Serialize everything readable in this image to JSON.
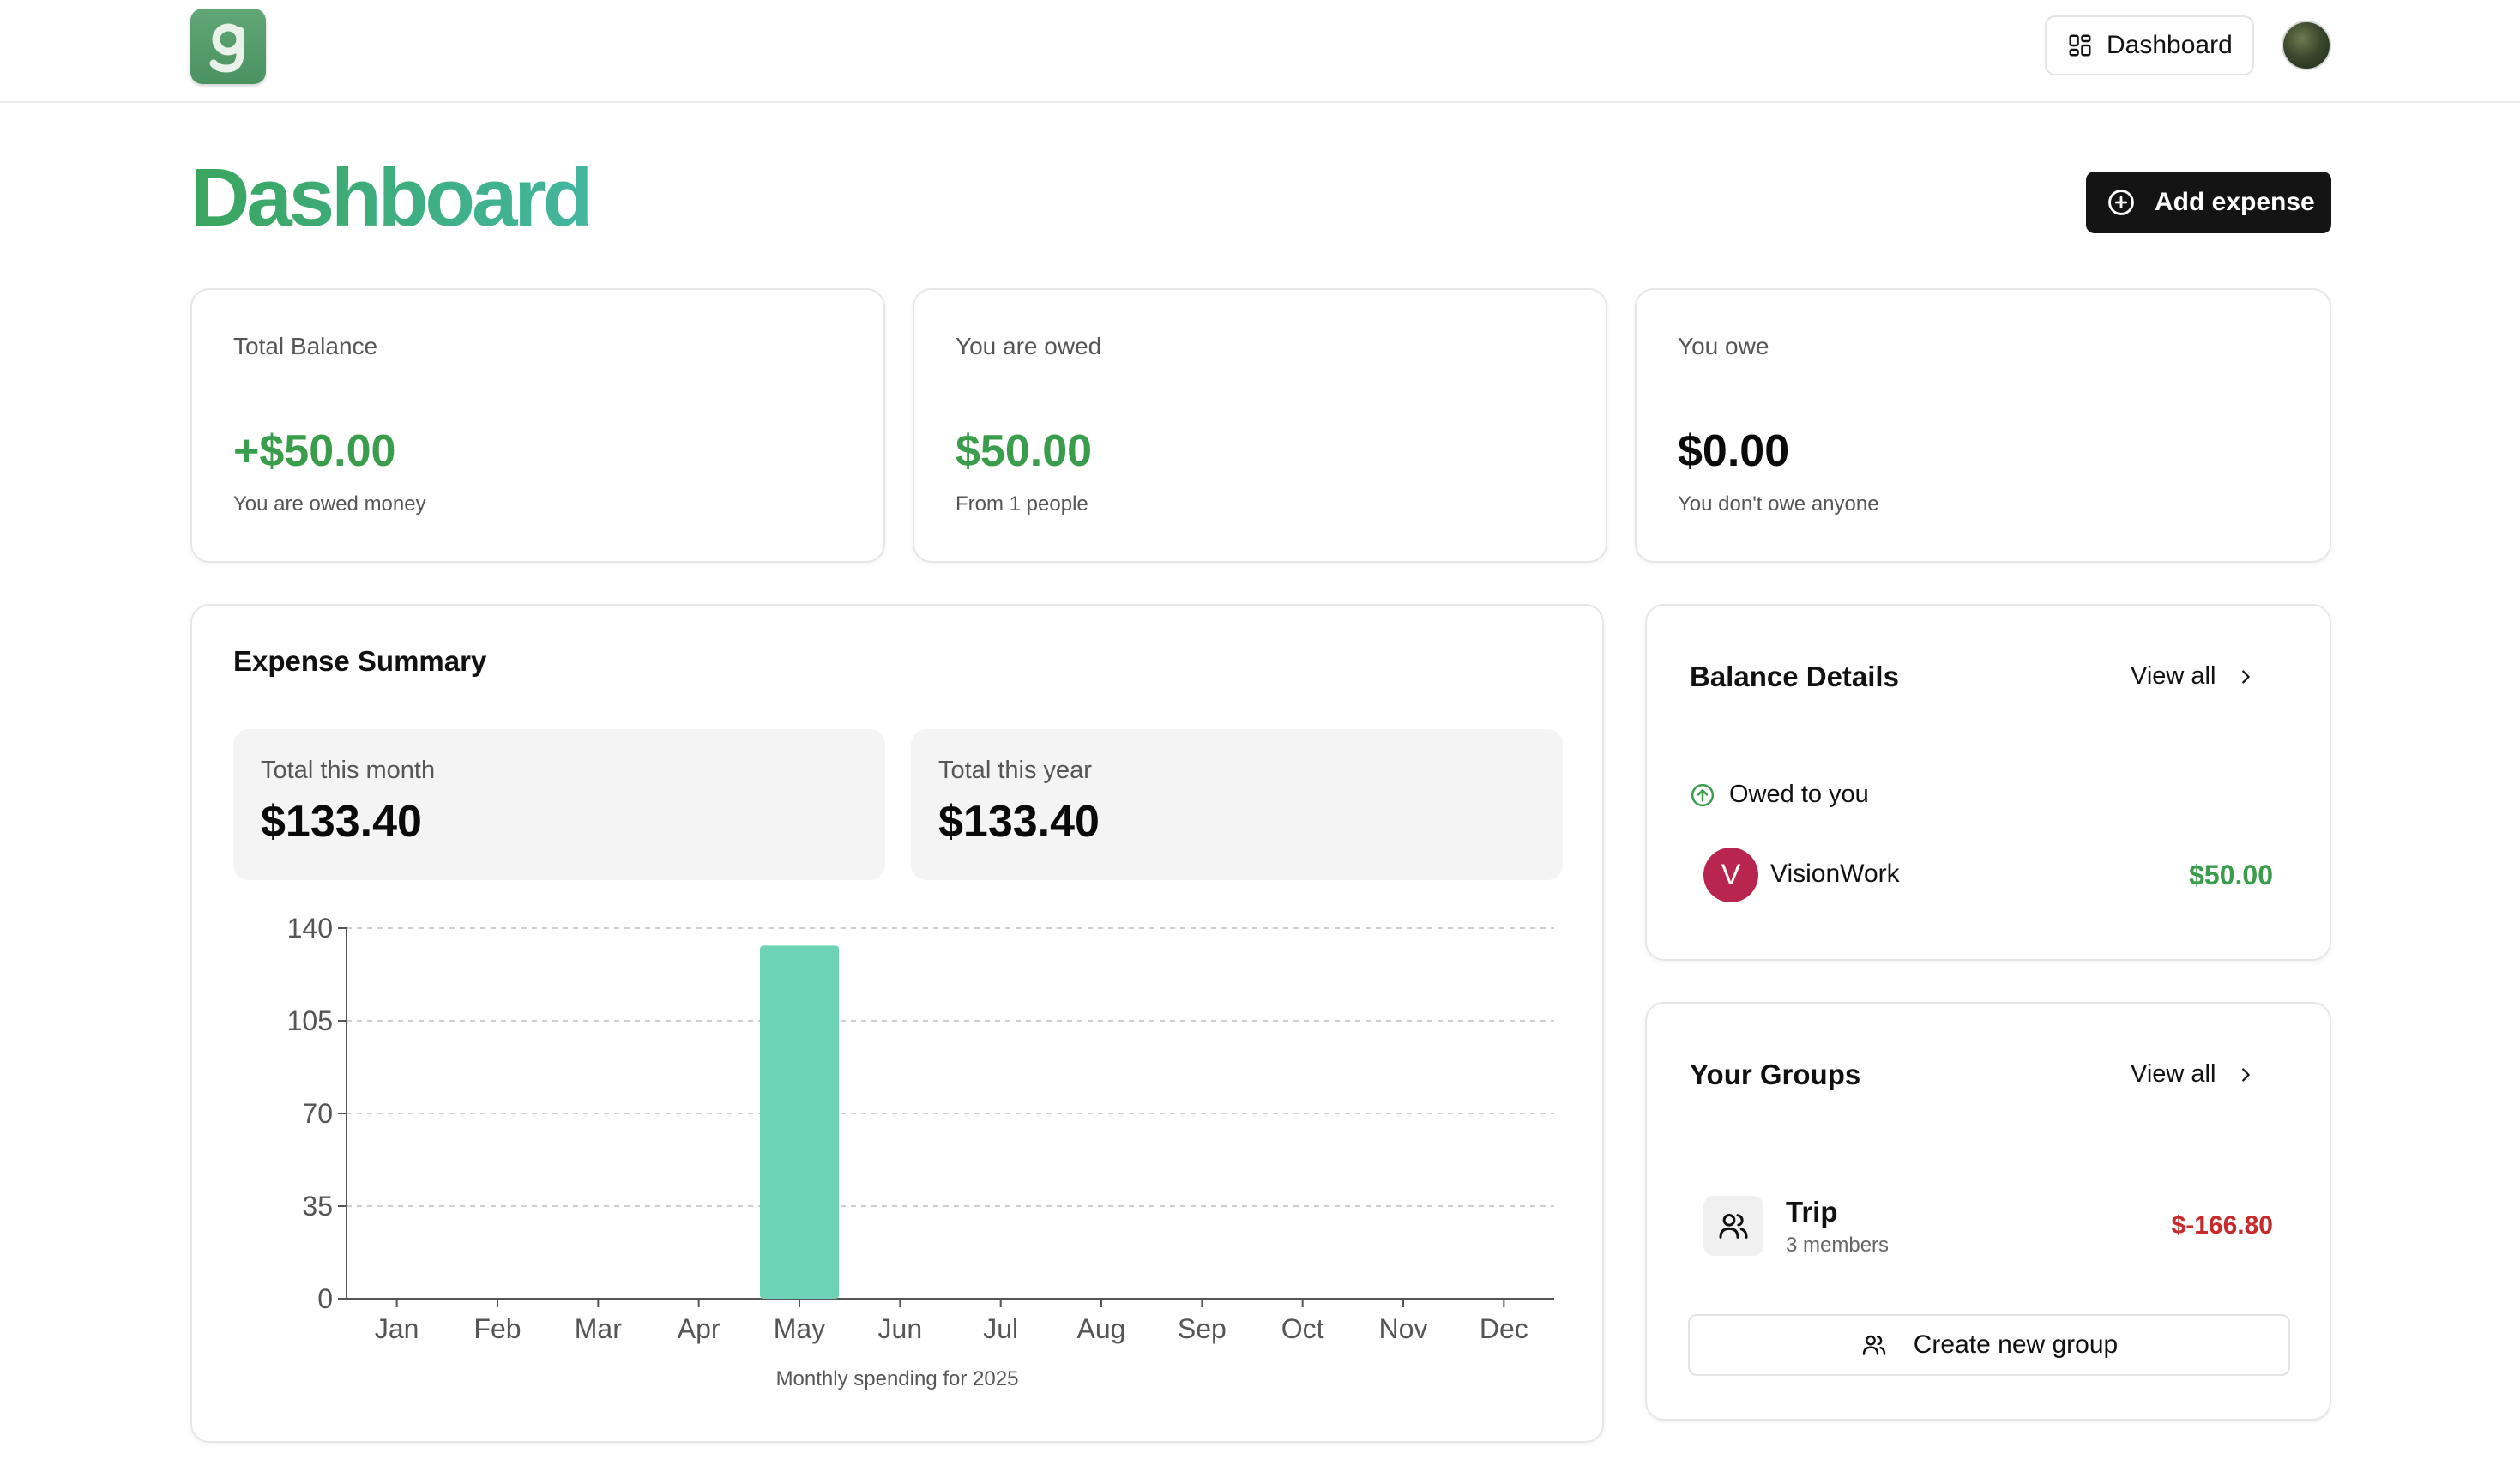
{
  "header": {
    "nav_button_label": "Dashboard",
    "logo_letter": "g"
  },
  "page": {
    "title": "Dashboard",
    "add_expense_label": "Add expense"
  },
  "stats": [
    {
      "label": "Total Balance",
      "value": "+$50.00",
      "sub": "You are owed money"
    },
    {
      "label": "You are owed",
      "value": "$50.00",
      "sub": "From 1 people"
    },
    {
      "label": "You owe",
      "value": "$0.00",
      "sub": "You don't owe anyone"
    }
  ],
  "expense_summary": {
    "title": "Expense Summary",
    "month_label": "Total this month",
    "month_value": "$133.40",
    "year_label": "Total this year",
    "year_value": "$133.40",
    "caption": "Monthly spending for 2025"
  },
  "chart_data": {
    "type": "bar",
    "categories": [
      "Jan",
      "Feb",
      "Mar",
      "Apr",
      "May",
      "Jun",
      "Jul",
      "Aug",
      "Sep",
      "Oct",
      "Nov",
      "Dec"
    ],
    "values": [
      0,
      0,
      0,
      0,
      133.4,
      0,
      0,
      0,
      0,
      0,
      0,
      0
    ],
    "yticks": [
      0,
      35,
      70,
      105,
      140
    ],
    "ylim": [
      0,
      140
    ],
    "grid": true,
    "bar_color": "#6dd3b7"
  },
  "balance_details": {
    "title": "Balance Details",
    "view_all": "View all",
    "owed_heading": "Owed to you",
    "people": [
      {
        "initial": "V",
        "name": "VisionWork",
        "amount": "$50.00"
      }
    ]
  },
  "groups": {
    "title": "Your Groups",
    "view_all": "View all",
    "items": [
      {
        "name": "Trip",
        "members": "3 members",
        "amount": "$-166.80"
      }
    ],
    "create_label": "Create new group"
  },
  "colors": {
    "accent_green": "#3a9d4b",
    "negative_red": "#c72a2a",
    "bar": "#6dd3b7"
  }
}
